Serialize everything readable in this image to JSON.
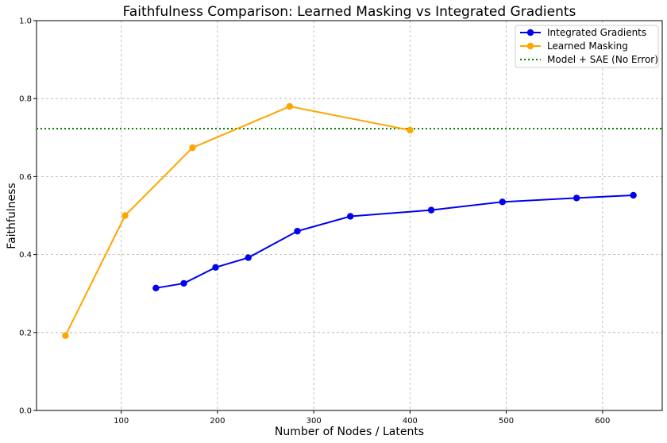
{
  "chart_data": {
    "type": "line",
    "title": "Faithfulness Comparison: Learned Masking vs Integrated Gradients",
    "xlabel": "Number of Nodes / Latents",
    "ylabel": "Faithfulness",
    "xlim": [
      12,
      662
    ],
    "ylim": [
      0.0,
      1.0
    ],
    "xticks": [
      100,
      200,
      300,
      400,
      500,
      600
    ],
    "yticks": [
      0.0,
      0.2,
      0.4,
      0.6,
      0.8,
      1.0
    ],
    "xtick_labels": [
      "100",
      "200",
      "300",
      "400",
      "500",
      "600"
    ],
    "ytick_labels": [
      "0.0",
      "0.2",
      "0.4",
      "0.6",
      "0.8",
      "1.0"
    ],
    "grid": true,
    "legend_position": "top-right",
    "series": [
      {
        "name": "Integrated Gradients",
        "color": "#0000ee",
        "marker": "circle",
        "x": [
          136,
          165,
          198,
          232,
          283,
          338,
          422,
          496,
          573,
          632
        ],
        "y": [
          0.314,
          0.326,
          0.367,
          0.392,
          0.46,
          0.498,
          0.514,
          0.535,
          0.545,
          0.552
        ]
      },
      {
        "name": "Learned Masking",
        "color": "#ffa500",
        "marker": "circle",
        "x": [
          42,
          104,
          174,
          275,
          400
        ],
        "y": [
          0.192,
          0.5,
          0.674,
          0.78,
          0.719
        ]
      }
    ],
    "reference_lines": [
      {
        "name": "Model + SAE (No Error)",
        "orientation": "horizontal",
        "y": 0.723,
        "color": "#008000",
        "style": "dotted"
      }
    ]
  }
}
